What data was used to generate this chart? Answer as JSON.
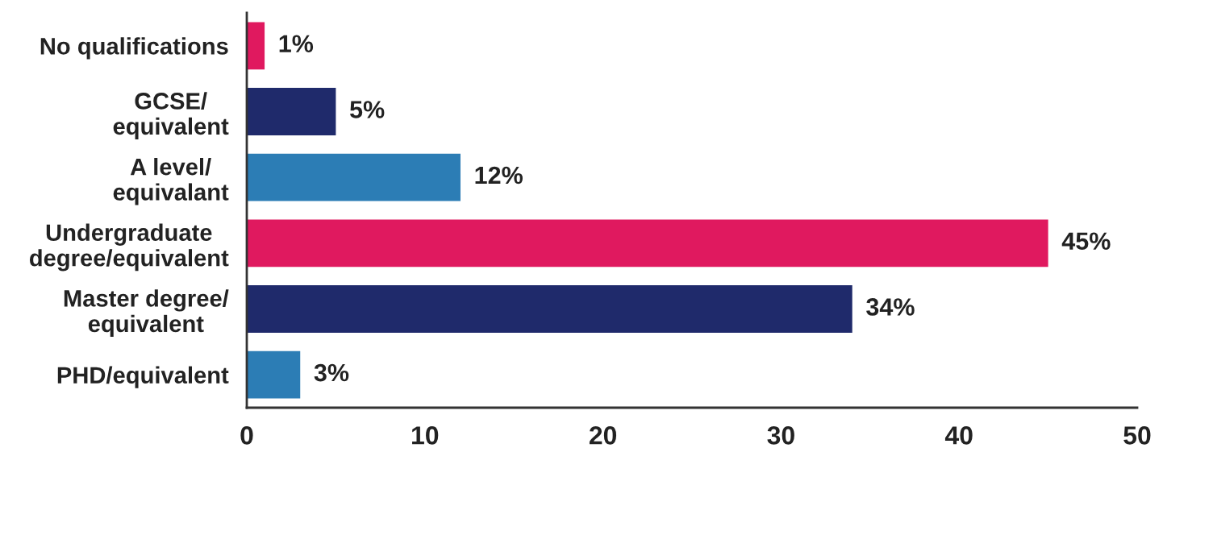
{
  "chart_data": {
    "type": "bar",
    "orientation": "horizontal",
    "categories": [
      "No qualifications",
      "GCSE/\nequivalent",
      "A level/\nequivalant",
      "Undergraduate\ndegree/equivalent",
      "Master degree/\nequivalent",
      "PHD/equivalent"
    ],
    "values": [
      1,
      5,
      12,
      45,
      34,
      3
    ],
    "colors": [
      "#e0195f",
      "#1f2a6b",
      "#2c7db5",
      "#e0195f",
      "#1f2a6b",
      "#2c7db5"
    ],
    "value_labels": [
      "1%",
      "5%",
      "12%",
      "45%",
      "34%",
      "3%"
    ],
    "xlim": [
      0,
      50
    ],
    "xticks": [
      0,
      10,
      20,
      30,
      40,
      50
    ],
    "grid": false,
    "legend": false
  }
}
